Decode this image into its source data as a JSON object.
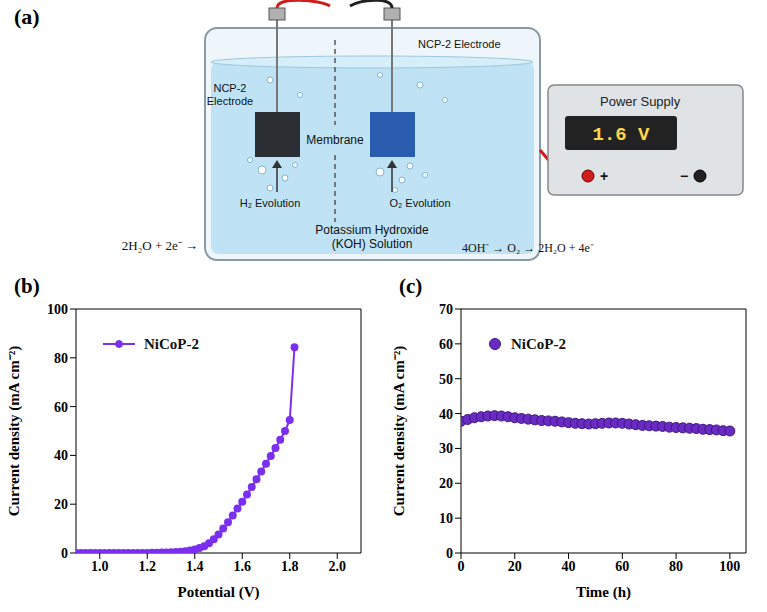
{
  "diagram": {
    "panel": "(a)",
    "cathode_label": "NCP-2 Electrode",
    "anode_label": "NCP-2 Electrode",
    "membrane": "Membrane",
    "power_supply": {
      "title": "Power Supply",
      "display": "1.6 V",
      "terminals": [
        "+",
        "−"
      ]
    },
    "cathode_gas": "H₂ Evolution",
    "anode_gas": "O₂ Evolution",
    "electrolyte": "Potassium Hydroxide (KOH) Solution",
    "cathode_reaction": "2H₂O + 2e⁻ →",
    "anode_reaction": "4OH⁻ → O₂ → 2H₂O + 4e⁻"
  },
  "chart_data": [
    {
      "panel": "(b)",
      "type": "line",
      "x_label": "Potential (V)",
      "y_label": "Current density (mA cm⁻²)",
      "xlim": [
        0.9,
        2.1
      ],
      "xticks": [
        {
          "value": 1,
          "label": "1.0"
        },
        1.2,
        1.4,
        1.6,
        1.8,
        {
          "value": 2,
          "label": "2.0"
        }
      ],
      "ylim": [
        0,
        100
      ],
      "yticks": [
        0,
        20,
        40,
        60,
        80,
        100
      ],
      "legend": "upper left",
      "marker": "circle",
      "line_style": "solid",
      "x": [
        0.9,
        0.92,
        0.94,
        0.96,
        0.98,
        1.0,
        1.02,
        1.04,
        1.06,
        1.08,
        1.1,
        1.12,
        1.14,
        1.16,
        1.18,
        1.2,
        1.22,
        1.24,
        1.26,
        1.28,
        1.3,
        1.32,
        1.34,
        1.36,
        1.38,
        1.4,
        1.42,
        1.44,
        1.46,
        1.48,
        1.5,
        1.52,
        1.54,
        1.56,
        1.58,
        1.6,
        1.62,
        1.64,
        1.66,
        1.68,
        1.7,
        1.72,
        1.74,
        1.76,
        1.78,
        1.8,
        1.82
      ],
      "series": [
        {
          "name": "NiCoP-2",
          "color": "#7b2ff0",
          "values": [
            0,
            0,
            0,
            0,
            0,
            0,
            0,
            0,
            0,
            0,
            0,
            0,
            0,
            0,
            0,
            0,
            0.1,
            0.1,
            0.2,
            0.2,
            0.3,
            0.4,
            0.5,
            0.7,
            1.0,
            1.4,
            2.0,
            2.8,
            4.0,
            5.6,
            7.6,
            10.0,
            12.6,
            15.4,
            18.2,
            21.0,
            24.0,
            27.0,
            30.2,
            33.4,
            36.6,
            39.8,
            43.0,
            46.4,
            50.0,
            54.5,
            84.3
          ]
        }
      ]
    },
    {
      "panel": "(c)",
      "type": "scatter",
      "x_label": "Time (h)",
      "y_label": "Current density (mA cm⁻²)",
      "xlim": [
        0,
        106
      ],
      "xticks": [
        0,
        20,
        40,
        60,
        80,
        100
      ],
      "ylim": [
        0,
        70
      ],
      "yticks": [
        0,
        10,
        20,
        30,
        40,
        50,
        60,
        70
      ],
      "legend": "upper left",
      "marker": "circle",
      "x": [
        0,
        2.5,
        5,
        7.5,
        10,
        12.5,
        15,
        17.5,
        20,
        22.5,
        25,
        27.5,
        30,
        32.5,
        35,
        37.5,
        40,
        42.5,
        45,
        47.5,
        50,
        52.5,
        55,
        57.5,
        60,
        62.5,
        65,
        67.5,
        70,
        72.5,
        75,
        77.5,
        80,
        82.5,
        85,
        87.5,
        90,
        92.5,
        95,
        97.5,
        100
      ],
      "series": [
        {
          "name": "NiCoP-2",
          "color": "#6a2bc4",
          "values": [
            37.8,
            38.3,
            38.8,
            39.1,
            39.3,
            39.4,
            39.3,
            39.1,
            38.8,
            38.6,
            38.4,
            38.2,
            38.0,
            37.9,
            37.8,
            37.6,
            37.4,
            37.2,
            37.1,
            37.0,
            37.1,
            37.2,
            37.3,
            37.3,
            37.2,
            37.0,
            36.8,
            36.6,
            36.5,
            36.4,
            36.3,
            36.1,
            36.0,
            35.9,
            35.8,
            35.7,
            35.5,
            35.4,
            35.3,
            35.1,
            35.0
          ]
        }
      ]
    }
  ]
}
